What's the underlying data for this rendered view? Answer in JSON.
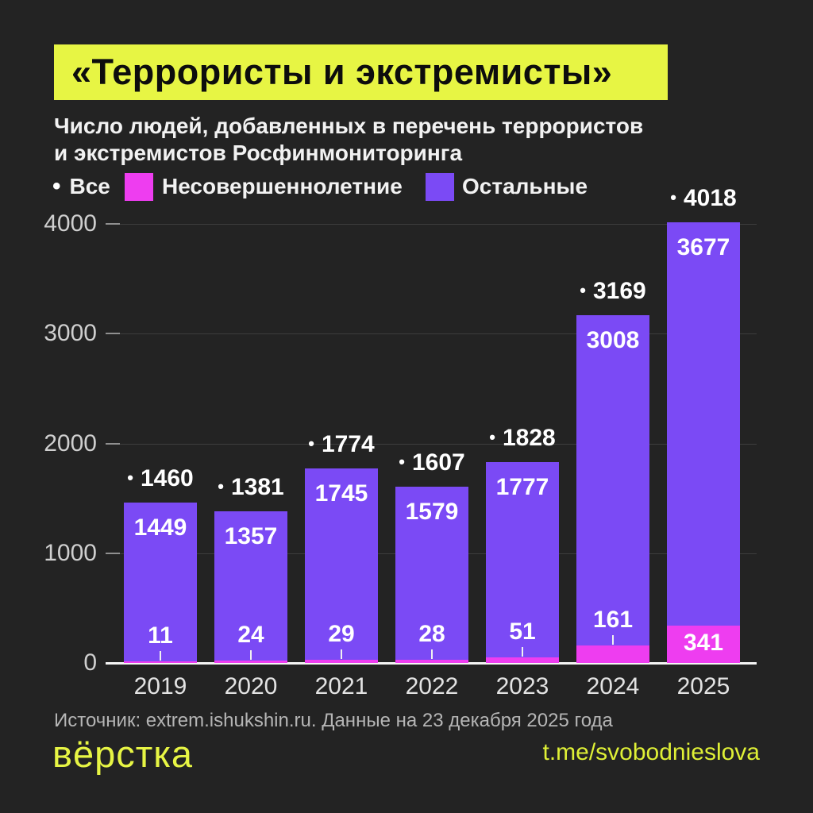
{
  "header": {
    "title": "«Террористы и экстремисты»"
  },
  "subtitle": {
    "line1": "Число людей, добавленных в перечень террористов",
    "line2": "и экстремистов Росфинмониторинга"
  },
  "legend": {
    "all_label": "Все",
    "all_marker": "•",
    "minors_label": "Несовершеннолетние",
    "others_label": "Остальные"
  },
  "colors": {
    "background": "#232323",
    "accent_yellow": "#e7f544",
    "purple": "#7b4af5",
    "pink": "#ee3df0",
    "grid": "#3d3d3d",
    "axis_text": "#cfcfcf",
    "white": "#ffffff",
    "muted_text": "#b5b5b5"
  },
  "chart_data": {
    "type": "bar",
    "stacked": true,
    "title": "Число людей, добавленных в перечень террористов и экстремистов Росфинмониторинга",
    "categories": [
      "2019",
      "2020",
      "2021",
      "2022",
      "2023",
      "2024",
      "2025"
    ],
    "series": [
      {
        "name": "Несовершеннолетние",
        "color_key": "pink",
        "values": [
          11,
          24,
          29,
          28,
          51,
          161,
          341
        ]
      },
      {
        "name": "Остальные",
        "color_key": "purple",
        "values": [
          1449,
          1357,
          1745,
          1579,
          1777,
          3008,
          3677
        ]
      }
    ],
    "totals": [
      1460,
      1381,
      1774,
      1607,
      1828,
      3169,
      4018
    ],
    "totals_marker": "•",
    "y_ticks": [
      0,
      1000,
      2000,
      3000,
      4000
    ],
    "ylim": [
      0,
      4000
    ],
    "grid": true,
    "legend_position": "top",
    "xlabel": "",
    "ylabel": ""
  },
  "footer": {
    "source": "Источник: extrem.ishukshin.ru. Данные на 23 декабря 2025 года",
    "logo": "вёрстка",
    "link": "t.me/svobodnieslova"
  }
}
